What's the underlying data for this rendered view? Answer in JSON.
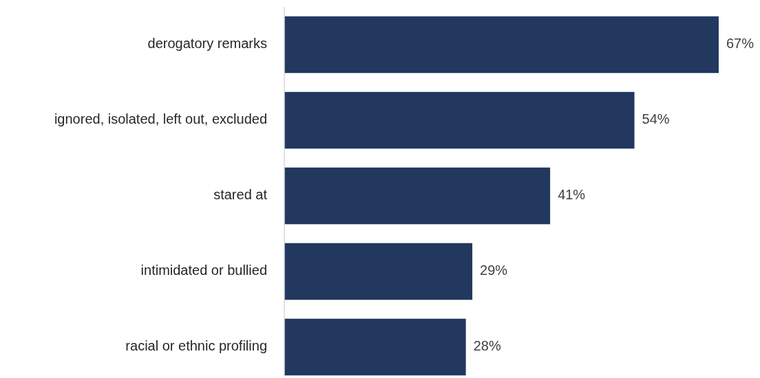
{
  "chart_data": {
    "type": "bar",
    "orientation": "horizontal",
    "categories": [
      "derogatory remarks",
      "ignored, isolated, left out, excluded",
      "stared at",
      "intimidated or bullied",
      "racial or ethnic profiling"
    ],
    "values": [
      67,
      54,
      41,
      29,
      28
    ],
    "value_labels": [
      "67%",
      "54%",
      "41%",
      "29%",
      "28%"
    ],
    "color": "#22385f"
  }
}
